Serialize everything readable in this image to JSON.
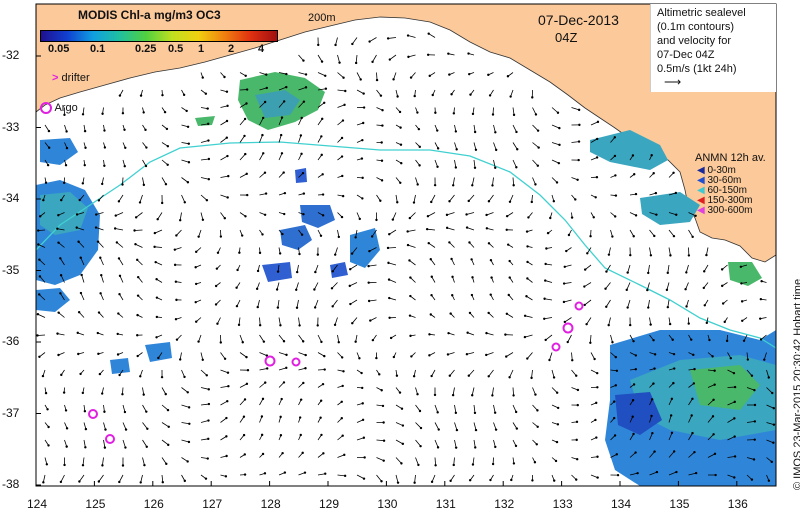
{
  "colorbar": {
    "title": "MODIS Chl-a mg/m3 OC3",
    "ticks": [
      "0.05",
      "0.1",
      "0.25",
      "0.5",
      "1",
      "2",
      "4"
    ]
  },
  "markers": {
    "drifter_label": "drifter",
    "argo_label": "Argo"
  },
  "contour_label": "200m",
  "date_text": "07-Dec-2013",
  "time_text": "04Z",
  "info_box": {
    "line1": "Altimetric sealevel",
    "line2": "(0.1m contours)",
    "line3": "and velocity for",
    "line4": "07-Dec 04Z",
    "line5": "0.5m/s (1kt 24h)"
  },
  "anmn": {
    "title": "ANMN 12h av.",
    "items": [
      {
        "label": "0-30m",
        "color": "#1a2a9a"
      },
      {
        "label": "30-60m",
        "color": "#2050d0"
      },
      {
        "label": "60-150m",
        "color": "#40c8d0"
      },
      {
        "label": "150-300m",
        "color": "#e02020"
      },
      {
        "label": "300-600m",
        "color": "#e040e0"
      }
    ]
  },
  "x_axis": [
    "124",
    "125",
    "126",
    "127",
    "128",
    "129",
    "130",
    "131",
    "132",
    "133",
    "134",
    "135",
    "136"
  ],
  "y_axis": [
    "-32",
    "-33",
    "-34",
    "-35",
    "-36",
    "-37",
    "-38"
  ],
  "credit": "© IMOS 23-Mar-2015 20:30:42 Hobart time",
  "colors": {
    "land": "#fbc99a",
    "contour200": "#40d0d0",
    "argo": "#e020e0",
    "arrow": "#000000"
  }
}
